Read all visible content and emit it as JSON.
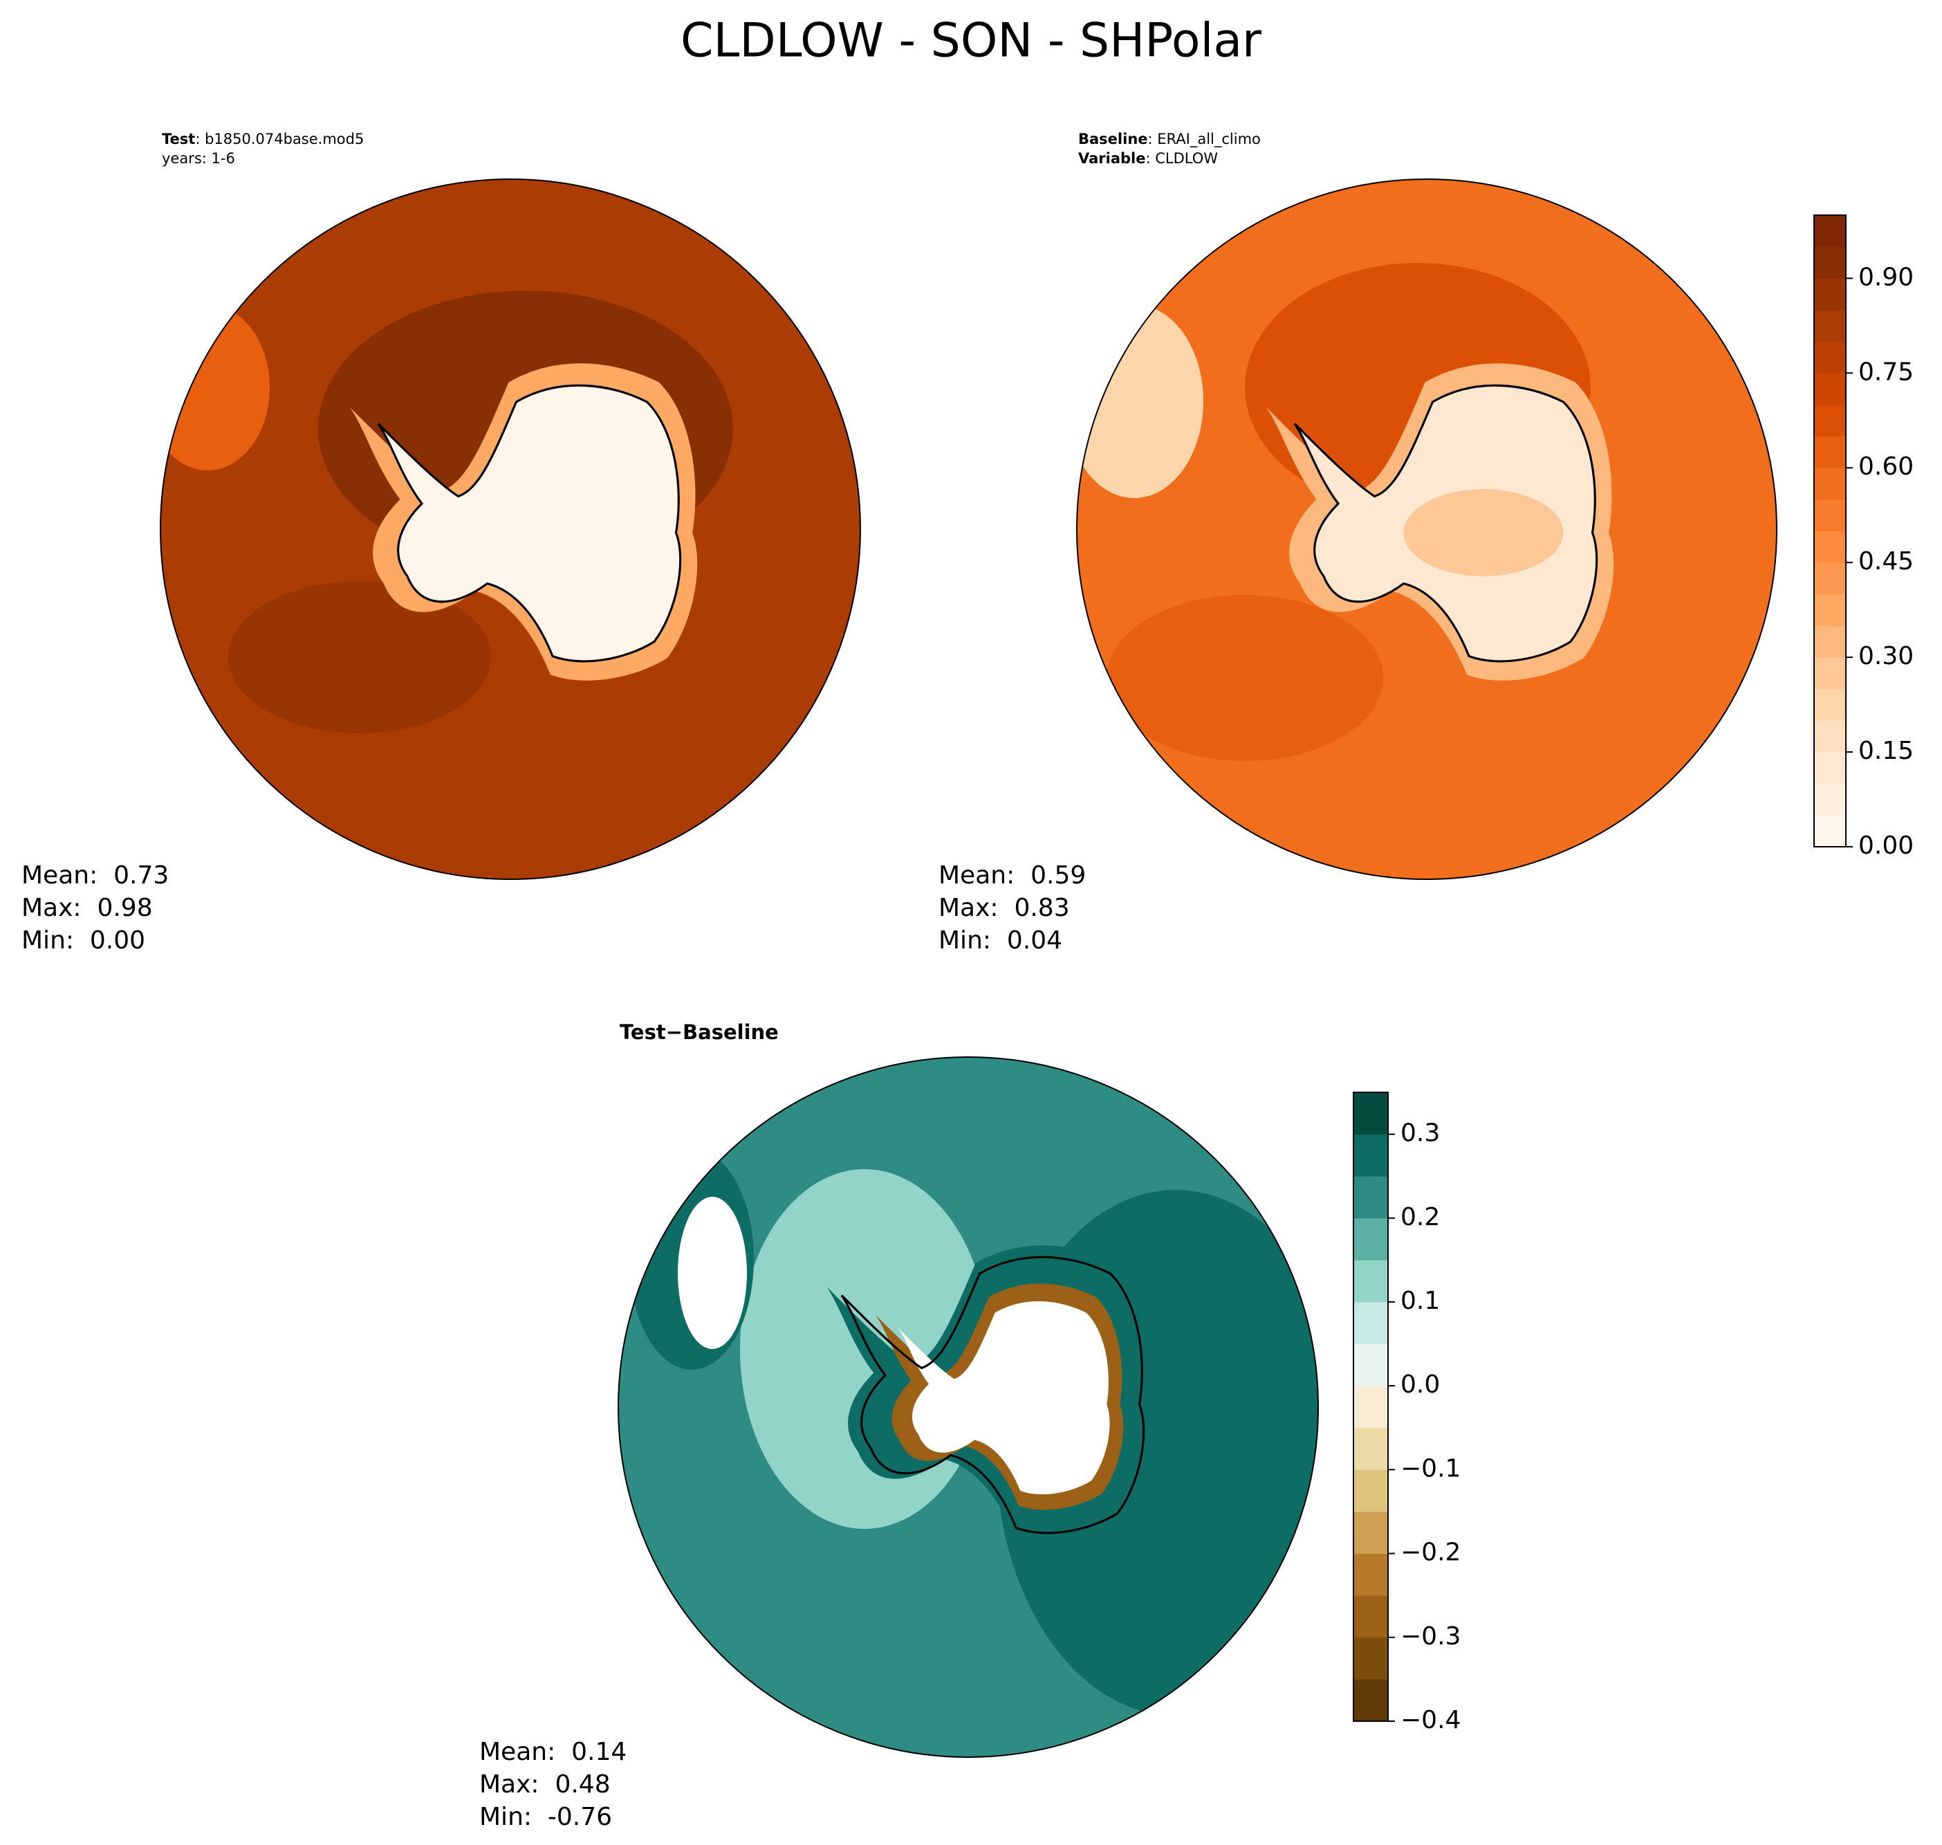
{
  "title": "CLDLOW - SON - SHPolar",
  "chart_data": [
    {
      "type": "polar-map",
      "heading": [
        {
          "key": "Test",
          "text": ": b1850.074base.mod5"
        },
        {
          "text": "years: 1-6"
        }
      ],
      "stats": [
        {
          "name": "Mean:",
          "text": "0.73"
        },
        {
          "name": "Max:",
          "text": "0.98"
        },
        {
          "name": "Min:",
          "text": "0.00"
        }
      ]
    },
    {
      "type": "polar-map",
      "heading": [
        {
          "key": "Baseline",
          "text": ": ERAI_all_climo"
        },
        {
          "key": "Variable",
          "text": ": CLDLOW"
        }
      ],
      "stats": [
        {
          "name": "Mean:",
          "text": "0.59"
        },
        {
          "name": "Max:",
          "text": "0.83"
        },
        {
          "name": "Min:",
          "text": "0.04"
        }
      ],
      "colorbar": {
        "clim": [
          0,
          1.0
        ],
        "ticks": [
          {
            "value": 0,
            "label": "0.00"
          },
          {
            "value": 0.15,
            "label": "0.15"
          },
          {
            "value": 0.3,
            "label": "0.30"
          },
          {
            "value": 0.45,
            "label": "0.45"
          },
          {
            "value": 0.6,
            "label": "0.60"
          },
          {
            "value": 0.75,
            "label": "0.75"
          },
          {
            "value": 0.9,
            "label": "0.90"
          }
        ],
        "colors": [
          "#fff5eb",
          "#ffefdf",
          "#fee8d2",
          "#fee0c1",
          "#fdd5ab",
          "#fdc895",
          "#fdb97d",
          "#fda863",
          "#fd9850",
          "#fb8a3d",
          "#f67c2c",
          "#f06e1c",
          "#e8600f",
          "#dc5006",
          "#cd4702",
          "#bd4103",
          "#ab3c03",
          "#983503",
          "#892f04",
          "#7f2704"
        ]
      }
    },
    {
      "type": "polar-map",
      "heading": [
        {
          "key": "Test",
          "text": "−",
          "key2": "Baseline"
        }
      ],
      "stats": [
        {
          "name": "Mean:",
          "text": "0.14"
        },
        {
          "name": "Max:",
          "text": "0.48"
        },
        {
          "name": "Min:",
          "text": "-0.76"
        }
      ],
      "colorbar": {
        "clim": [
          -0.4,
          0.35
        ],
        "ticks": [
          {
            "value": -0.4,
            "label": "−0.4"
          },
          {
            "value": -0.3,
            "label": "−0.3"
          },
          {
            "value": -0.2,
            "label": "−0.2"
          },
          {
            "value": -0.1,
            "label": "−0.1"
          },
          {
            "value": 0.0,
            "label": "0.0"
          },
          {
            "value": 0.1,
            "label": "0.1"
          },
          {
            "value": 0.2,
            "label": "0.2"
          },
          {
            "value": 0.3,
            "label": "0.3"
          }
        ],
        "colors": [
          "#5e3a07",
          "#7d4d0b",
          "#9c6116",
          "#b77a2b",
          "#cfa054",
          "#dfc27d",
          "#ecd9a8",
          "#f5ecd3",
          "#e9f3f0",
          "#c7eae5",
          "#93d4c9",
          "#5db0a4",
          "#2f8c84",
          "#0d6c63",
          "#014c3f"
        ]
      }
    }
  ]
}
